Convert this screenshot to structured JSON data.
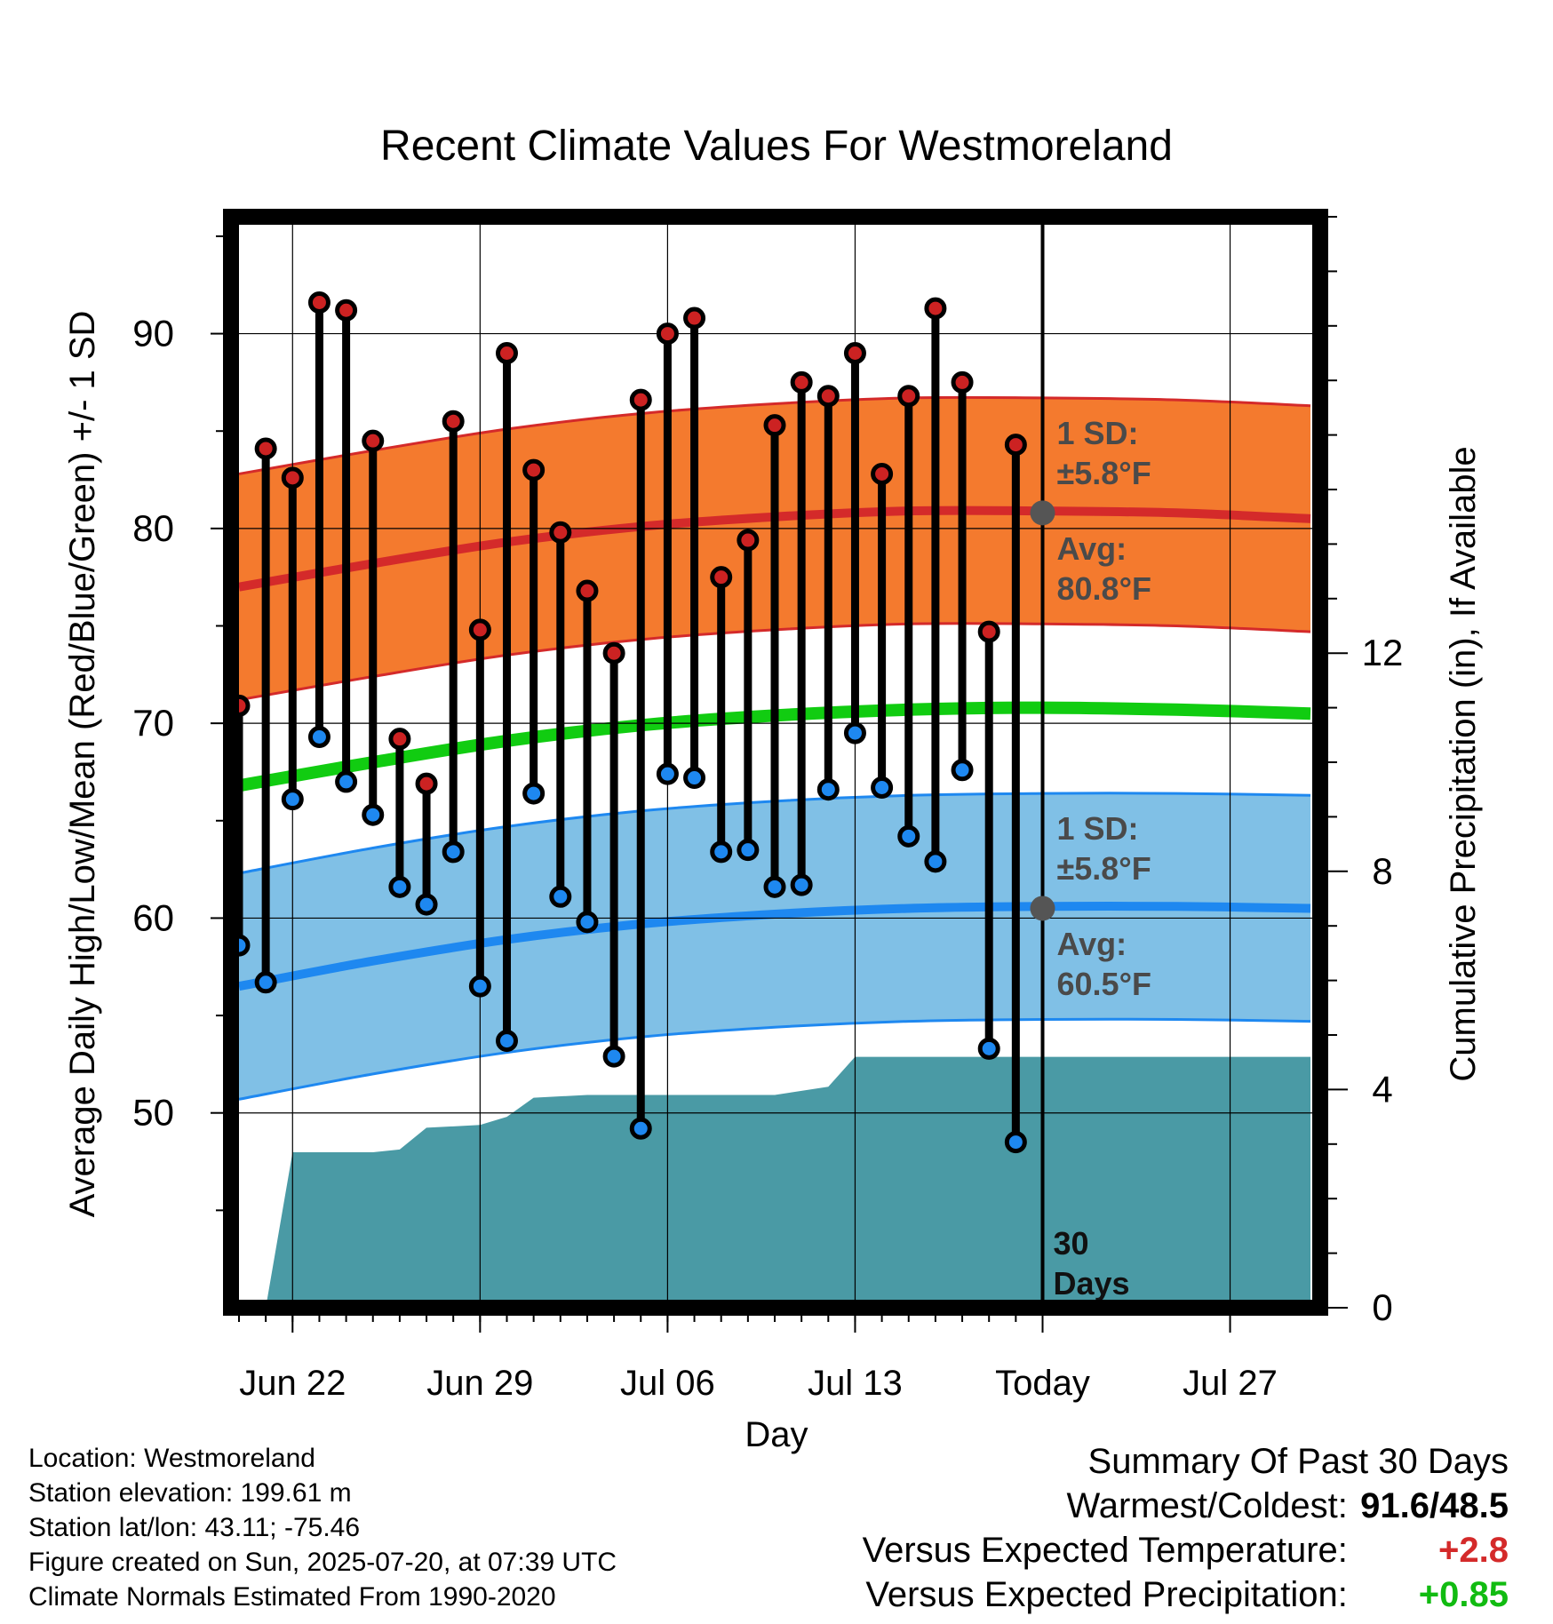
{
  "chart_data": {
    "type": "line",
    "title": "Recent Climate Values For Westmoreland",
    "xlabel": "Day",
    "ylabel": "Average Daily High/Low/Mean (Red/Blue/Green) +/- 1 SD",
    "y2label": "Cumulative Precipitation (in), If Available",
    "ylim": [
      40,
      96
    ],
    "y2lim": [
      0,
      20
    ],
    "yticks": [
      "50",
      "60",
      "70",
      "80",
      "90"
    ],
    "y2ticks": [
      "0",
      "4",
      "8",
      "12"
    ],
    "xticks": [
      "Jun 22",
      "Jun 29",
      "Jul 06",
      "Jul 13",
      "Today",
      "Jul 27"
    ],
    "days": [
      "Jun 20",
      "Jun 21",
      "Jun 22",
      "Jun 23",
      "Jun 24",
      "Jun 25",
      "Jun 26",
      "Jun 27",
      "Jun 28",
      "Jun 29",
      "Jun 30",
      "Jul 01",
      "Jul 02",
      "Jul 03",
      "Jul 04",
      "Jul 05",
      "Jul 06",
      "Jul 07",
      "Jul 08",
      "Jul 09",
      "Jul 10",
      "Jul 11",
      "Jul 12",
      "Jul 13",
      "Jul 14",
      "Jul 15",
      "Jul 16",
      "Jul 17",
      "Jul 18",
      "Jul 19"
    ],
    "highs": [
      70.9,
      84.1,
      82.6,
      91.6,
      91.2,
      84.5,
      69.2,
      66.9,
      85.5,
      74.8,
      89.0,
      83.0,
      79.8,
      76.8,
      73.6,
      86.6,
      90.0,
      90.8,
      77.5,
      79.4,
      85.3,
      87.5,
      86.8,
      89.0,
      82.8,
      86.8,
      91.3,
      87.5,
      74.7,
      84.3
    ],
    "lows": [
      58.6,
      56.7,
      66.1,
      69.3,
      67.0,
      65.3,
      61.6,
      60.7,
      63.4,
      56.5,
      53.7,
      66.4,
      61.1,
      59.8,
      52.9,
      49.2,
      67.4,
      67.2,
      63.4,
      63.5,
      61.6,
      61.7,
      66.6,
      69.5,
      66.7,
      64.2,
      62.9,
      67.6,
      53.3,
      48.5
    ],
    "normal_x": [
      "Jun 20",
      "Jun 25",
      "Jun 30",
      "Jul 05",
      "Jul 10",
      "Jul 15",
      "Jul 20",
      "Jul 25",
      "Jul 30"
    ],
    "normal_high": [
      77.0,
      78.2,
      79.3,
      80.1,
      80.6,
      80.9,
      80.9,
      80.8,
      80.5
    ],
    "normal_high_sd": [
      5.8,
      5.8,
      5.8,
      5.8,
      5.8,
      5.8,
      5.8,
      5.8,
      5.8
    ],
    "normal_low": [
      56.5,
      57.8,
      58.9,
      59.7,
      60.2,
      60.5,
      60.6,
      60.6,
      60.5
    ],
    "normal_low_sd": [
      5.8,
      5.8,
      5.8,
      5.8,
      5.8,
      5.8,
      5.8,
      5.8,
      5.8
    ],
    "normal_mean": [
      66.8,
      68.0,
      69.1,
      69.9,
      70.4,
      70.7,
      70.8,
      70.7,
      70.5
    ],
    "precip_x": [
      "Jun 20",
      "Jun 21",
      "Jun 22",
      "Jun 25",
      "Jun 26",
      "Jun 27",
      "Jun 29",
      "Jun 30",
      "Jul 01",
      "Jul 03",
      "Jul 10",
      "Jul 12",
      "Jul 13",
      "Jul 30"
    ],
    "precip_cum": [
      0.0,
      0.0,
      2.85,
      2.85,
      2.9,
      3.3,
      3.35,
      3.5,
      3.85,
      3.9,
      3.9,
      4.05,
      4.6,
      4.6
    ],
    "today": "Jul 20",
    "annotations": {
      "high_sd_line1": "1 SD:",
      "high_sd_line2": "±5.8°F",
      "high_avg_line1": "Avg:",
      "high_avg_line2": "80.8°F",
      "low_sd_line1": "1 SD:",
      "low_sd_line2": "±5.8°F",
      "low_avg_line1": "Avg:",
      "low_avg_line2": "60.5°F",
      "period_line1": "30",
      "period_line2": "Days",
      "high_avg_value": 80.8,
      "low_avg_value": 60.5
    },
    "colors": {
      "high_band": "#f47a2e",
      "high_line": "#d42a2a",
      "low_band": "#80c0e6",
      "low_line": "#1e88f0",
      "mean_line": "#11cc11",
      "precip": "#4a9aa5",
      "high_dot": "#cc2222",
      "low_dot": "#1e88f0"
    }
  },
  "footer": {
    "location": "Location: Westmoreland",
    "elevation": "Station elevation: 199.61 m",
    "latlon": "Station lat/lon: 43.11; -75.46",
    "created": "Figure created on Sun, 2025-07-20, at 07:39 UTC",
    "normals": "Climate Normals Estimated From 1990-2020"
  },
  "summary": {
    "heading": "Summary Of Past 30 Days",
    "warm_cold_label": "Warmest/Coldest:",
    "warm_cold_value": "91.6/48.5",
    "temp_label": "Versus Expected Temperature:",
    "temp_value": "+2.8",
    "precip_label": "Versus Expected Precipitation:",
    "precip_value": "+0.85",
    "temp_color": "#d42a2a",
    "precip_color": "#11bb11"
  }
}
